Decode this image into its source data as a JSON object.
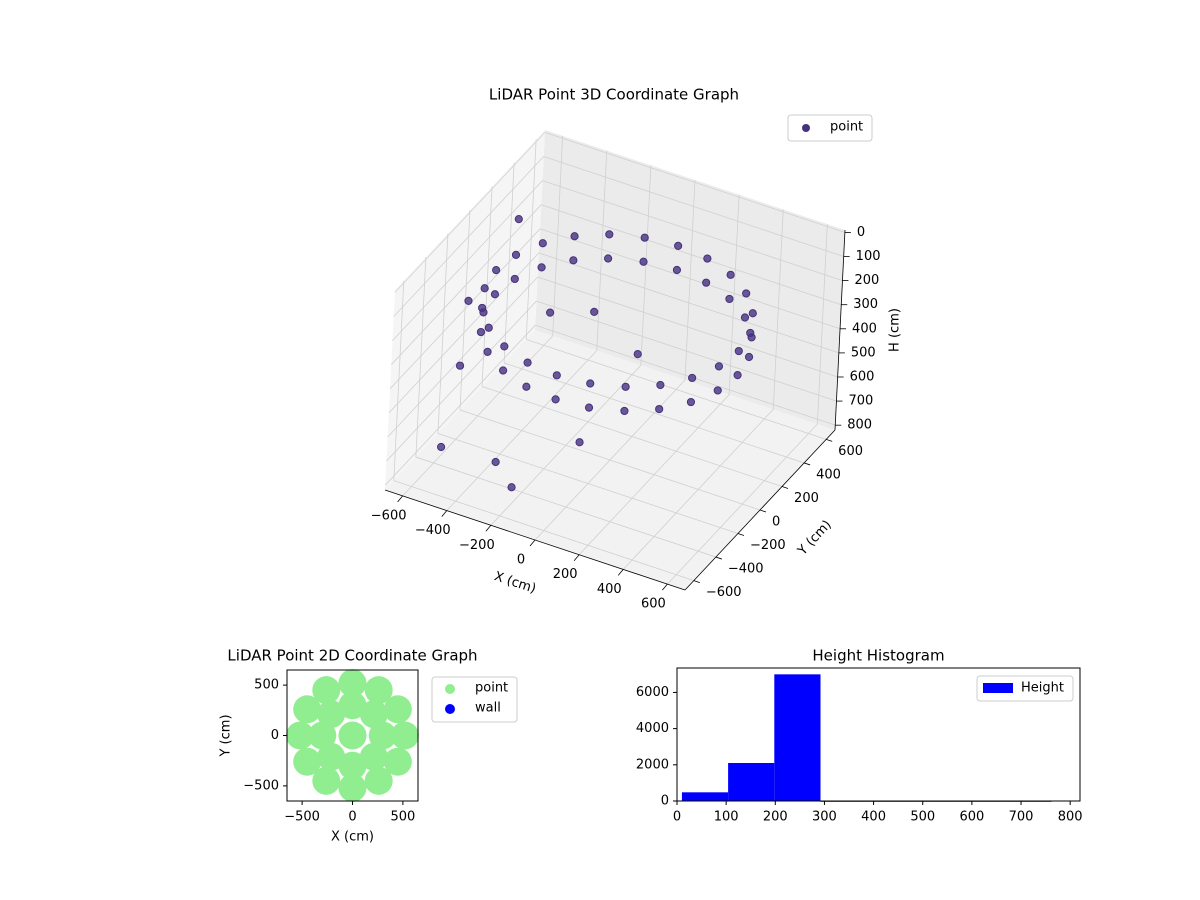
{
  "chart_data": [
    {
      "type": "scatter3d",
      "title": "LiDAR Point 3D Coordinate Graph",
      "xlabel": "X (cm)",
      "ylabel": "Y (cm)",
      "zlabel": "H (cm)",
      "xlim": [
        -680,
        680
      ],
      "ylim": [
        -680,
        680
      ],
      "zlim": [
        820,
        -10
      ],
      "xticks": [
        {
          "value": -600,
          "label": "−600"
        },
        {
          "value": -400,
          "label": "−400"
        },
        {
          "value": -200,
          "label": "−200"
        },
        0,
        200,
        400,
        600
      ],
      "yticks": [
        {
          "value": -600,
          "label": "−600"
        },
        {
          "value": -400,
          "label": "−400"
        },
        {
          "value": -200,
          "label": "−200"
        },
        0,
        200,
        400,
        600
      ],
      "zticks": [
        0,
        100,
        200,
        300,
        400,
        500,
        600,
        700,
        800
      ],
      "legend": "upper right",
      "series": [
        {
          "name": "point",
          "color": "#46317e",
          "x": [
            550,
            531,
            476,
            389,
            275,
            142,
            0,
            -142,
            -275,
            -389,
            -476,
            -531,
            -550,
            -531,
            -476,
            -389,
            -275,
            -142,
            0,
            142,
            275,
            389,
            476,
            531,
            550,
            531,
            476,
            389,
            275,
            142,
            0,
            -142,
            -275,
            -389,
            -476,
            -531,
            -550,
            -531,
            -476,
            -389,
            -275,
            -142,
            0,
            142,
            275,
            389,
            476,
            531,
            -620,
            -600,
            -550,
            -500,
            -300,
            -200,
            0,
            -300,
            -150,
            100
          ],
          "y": [
            0,
            142,
            275,
            389,
            476,
            531,
            550,
            531,
            476,
            389,
            275,
            142,
            0,
            -142,
            -275,
            -389,
            -476,
            -531,
            -550,
            -531,
            -476,
            -389,
            -275,
            -142,
            0,
            142,
            275,
            389,
            476,
            531,
            550,
            531,
            476,
            389,
            275,
            142,
            0,
            -142,
            -275,
            -389,
            -476,
            -531,
            -550,
            -531,
            -476,
            -389,
            -275,
            -142,
            -100,
            300,
            -300,
            -550,
            -450,
            -500,
            -300,
            0,
            100,
            0
          ],
          "z": [
            200,
            200,
            200,
            200,
            200,
            200,
            200,
            200,
            200,
            200,
            200,
            200,
            200,
            200,
            200,
            200,
            200,
            200,
            200,
            200,
            200,
            200,
            200,
            200,
            300,
            300,
            300,
            300,
            300,
            300,
            300,
            300,
            300,
            300,
            300,
            300,
            300,
            300,
            300,
            300,
            300,
            300,
            300,
            300,
            300,
            300,
            300,
            300,
            300,
            150,
            450,
            650,
            700,
            750,
            600,
            300,
            300,
            350
          ]
        }
      ]
    },
    {
      "type": "scatter",
      "title": "LiDAR Point 2D Coordinate Graph",
      "xlabel": "X (cm)",
      "ylabel": "Y (cm)",
      "xlim": [
        -650,
        650
      ],
      "ylim": [
        -650,
        650
      ],
      "xticks": [
        {
          "value": -500,
          "label": "−500"
        },
        0,
        500
      ],
      "yticks": [
        {
          "value": -500,
          "label": "−500"
        },
        0,
        500
      ],
      "legend": "upper left outside",
      "series": [
        {
          "name": "point",
          "color": "#90ee90",
          "x": [
            520,
            450,
            260,
            0,
            -260,
            -450,
            -520,
            -450,
            -260,
            0,
            260,
            450,
            300,
            212,
            0,
            -212,
            -300,
            -212,
            0,
            212,
            0
          ],
          "y": [
            0,
            260,
            450,
            520,
            450,
            260,
            0,
            -260,
            -450,
            -520,
            -450,
            -260,
            0,
            212,
            300,
            212,
            0,
            -212,
            -300,
            -212,
            0
          ]
        },
        {
          "name": "wall",
          "color": "#0000ff",
          "x": [],
          "y": []
        }
      ]
    },
    {
      "type": "histogram",
      "title": "Height Histogram",
      "bins": [
        10,
        104,
        198,
        292,
        386,
        480,
        574,
        668,
        762
      ],
      "counts": [
        480,
        2100,
        7000,
        0,
        0,
        0,
        0,
        0
      ],
      "xlim": [
        0,
        820
      ],
      "ylim": [
        0,
        7350
      ],
      "xticks": [
        0,
        100,
        200,
        300,
        400,
        500,
        600,
        700,
        800
      ],
      "yticks": [
        0,
        2000,
        4000,
        6000
      ],
      "legend": "upper right",
      "series": [
        {
          "name": "Height",
          "color": "#0000ff"
        }
      ]
    }
  ]
}
